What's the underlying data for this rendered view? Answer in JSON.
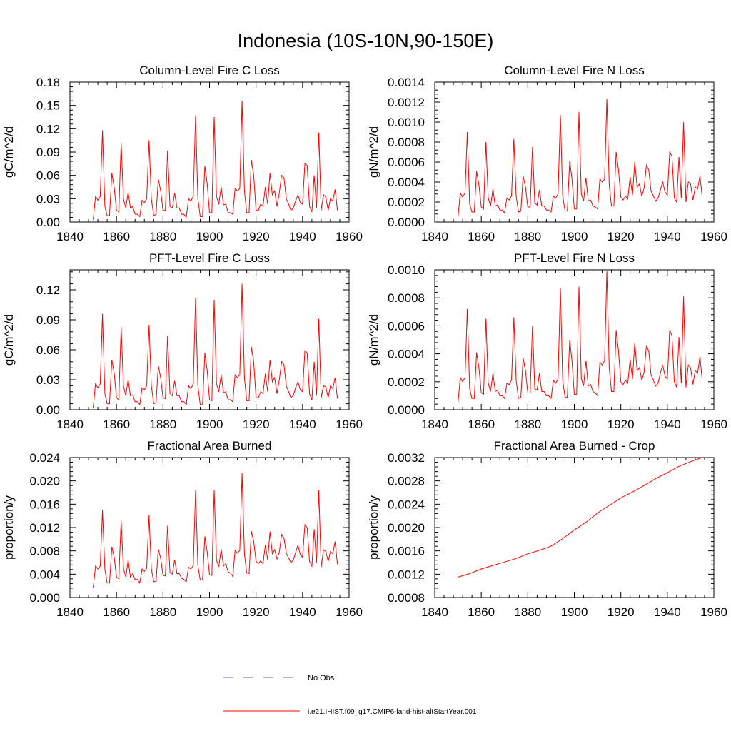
{
  "figure": {
    "title": "Indonesia (10S-10N,90-150E)",
    "colors": {
      "model": "#ff0000",
      "obs": "#6a6aa8",
      "axis": "#000000"
    }
  },
  "legend": [
    {
      "label": "No Obs",
      "style": "dashed",
      "color": "#6a6aa8"
    },
    {
      "label": "i.e21.IHIST.f09_g17.CMIP6-land-hist-altStartYear.001",
      "style": "solid",
      "color": "#ff0000"
    }
  ],
  "chart_data": [
    {
      "type": "line",
      "title": "Column-Level Fire C Loss",
      "ylabel": "gC/m^2/d",
      "xlim": [
        1840,
        1960
      ],
      "xticks": [
        1840,
        1860,
        1880,
        1900,
        1920,
        1940,
        1960
      ],
      "ylim": [
        0,
        0.18
      ],
      "yticks": [
        "0.00",
        "0.03",
        "0.06",
        "0.09",
        "0.12",
        "0.15",
        "0.18"
      ],
      "x_start": 1850,
      "x_step": 1,
      "series": [
        {
          "values": [
            0.003,
            0.033,
            0.028,
            0.033,
            0.118,
            0.02,
            0.008,
            0.008,
            0.063,
            0.045,
            0.015,
            0.013,
            0.102,
            0.03,
            0.018,
            0.038,
            0.018,
            0.02,
            0.01,
            0.01,
            0.007,
            0.028,
            0.025,
            0.03,
            0.105,
            0.03,
            0.008,
            0.01,
            0.055,
            0.04,
            0.015,
            0.015,
            0.092,
            0.02,
            0.018,
            0.037,
            0.018,
            0.018,
            0.01,
            0.01,
            0.006,
            0.03,
            0.027,
            0.033,
            0.137,
            0.03,
            0.007,
            0.007,
            0.072,
            0.05,
            0.012,
            0.012,
            0.135,
            0.033,
            0.023,
            0.045,
            0.022,
            0.023,
            0.012,
            0.012,
            0.01,
            0.043,
            0.04,
            0.043,
            0.156,
            0.04,
            0.012,
            0.012,
            0.08,
            0.06,
            0.015,
            0.015,
            0.023,
            0.02,
            0.045,
            0.023,
            0.063,
            0.035,
            0.04,
            0.02,
            0.038,
            0.06,
            0.057,
            0.03,
            0.023,
            0.015,
            0.018,
            0.027,
            0.035,
            0.025,
            0.023,
            0.075,
            0.073,
            0.02,
            0.013,
            0.06,
            0.018,
            0.115,
            0.015,
            0.035,
            0.032,
            0.015,
            0.03,
            0.027,
            0.042,
            0.015
          ]
        }
      ]
    },
    {
      "type": "line",
      "title": "Column-Level Fire N Loss",
      "ylabel": "gN/m^2/d",
      "xlim": [
        1840,
        1960
      ],
      "xticks": [
        1840,
        1860,
        1880,
        1900,
        1920,
        1940,
        1960
      ],
      "ylim": [
        0,
        0.0014
      ],
      "yticks": [
        "0.0000",
        "0.0002",
        "0.0004",
        "0.0006",
        "0.0008",
        "0.0010",
        "0.0012",
        "0.0014"
      ],
      "x_start": 1850,
      "x_step": 1,
      "series": [
        {
          "values": [
            5e-05,
            0.00029,
            0.00025,
            0.00029,
            0.0009,
            0.00018,
            0.0001,
            0.0001,
            0.00051,
            0.00037,
            0.00015,
            0.00013,
            0.0008,
            0.00024,
            0.00016,
            0.00033,
            0.00016,
            0.00017,
            0.00012,
            0.00012,
            9e-05,
            0.00024,
            0.00022,
            0.00026,
            0.00083,
            0.00026,
            0.0001,
            0.00011,
            0.00046,
            0.00035,
            0.00015,
            0.00015,
            0.00075,
            0.00019,
            0.00017,
            0.00032,
            0.00016,
            0.00016,
            0.00012,
            0.00012,
            0.0001,
            0.00026,
            0.00024,
            0.00028,
            0.00107,
            0.00026,
            0.00011,
            0.00011,
            0.00061,
            0.00043,
            0.00013,
            0.00013,
            0.0011,
            0.00028,
            0.00021,
            0.00044,
            0.00021,
            0.00022,
            0.00016,
            0.00015,
            0.00013,
            0.00043,
            0.0004,
            0.00043,
            0.00123,
            0.00037,
            0.00016,
            0.00016,
            0.0007,
            0.00052,
            0.00025,
            0.00022,
            0.00026,
            0.00023,
            0.00045,
            0.00027,
            0.0006,
            0.00035,
            0.00038,
            0.00026,
            0.00034,
            0.00057,
            0.00052,
            0.00031,
            0.00026,
            0.00021,
            0.00024,
            0.00032,
            0.0004,
            0.0003,
            0.00027,
            0.0007,
            0.00066,
            0.00024,
            0.0002,
            0.00065,
            0.00024,
            0.001,
            0.0002,
            0.0004,
            0.00038,
            0.00022,
            0.00035,
            0.00033,
            0.00046,
            0.00025
          ]
        }
      ]
    },
    {
      "type": "line",
      "title": "PFT-Level Fire C Loss",
      "ylabel": "gC/m^2/d",
      "xlim": [
        1840,
        1960
      ],
      "xticks": [
        1840,
        1860,
        1880,
        1900,
        1920,
        1940,
        1960
      ],
      "ylim": [
        0,
        0.14
      ],
      "yticks": [
        "0.00",
        "0.03",
        "0.06",
        "0.09",
        "0.12"
      ],
      "x_start": 1850,
      "x_step": 1,
      "series": [
        {
          "values": [
            0.002,
            0.026,
            0.022,
            0.026,
            0.096,
            0.016,
            0.006,
            0.006,
            0.05,
            0.037,
            0.012,
            0.01,
            0.083,
            0.024,
            0.014,
            0.03,
            0.014,
            0.015,
            0.008,
            0.008,
            0.005,
            0.022,
            0.02,
            0.024,
            0.085,
            0.024,
            0.006,
            0.007,
            0.044,
            0.032,
            0.012,
            0.011,
            0.074,
            0.016,
            0.014,
            0.029,
            0.014,
            0.014,
            0.008,
            0.008,
            0.005,
            0.024,
            0.021,
            0.026,
            0.112,
            0.024,
            0.005,
            0.005,
            0.057,
            0.04,
            0.01,
            0.009,
            0.11,
            0.026,
            0.018,
            0.035,
            0.017,
            0.018,
            0.01,
            0.01,
            0.008,
            0.035,
            0.032,
            0.035,
            0.126,
            0.032,
            0.009,
            0.009,
            0.063,
            0.048,
            0.012,
            0.012,
            0.018,
            0.016,
            0.036,
            0.018,
            0.05,
            0.028,
            0.032,
            0.016,
            0.03,
            0.048,
            0.045,
            0.024,
            0.018,
            0.012,
            0.014,
            0.022,
            0.028,
            0.02,
            0.018,
            0.059,
            0.057,
            0.016,
            0.01,
            0.048,
            0.014,
            0.091,
            0.012,
            0.024,
            0.023,
            0.012,
            0.024,
            0.021,
            0.032,
            0.011
          ]
        }
      ]
    },
    {
      "type": "line",
      "title": "PFT-Level Fire N Loss",
      "ylabel": "gN/m^2/d",
      "xlim": [
        1840,
        1960
      ],
      "xticks": [
        1840,
        1860,
        1880,
        1900,
        1920,
        1940,
        1960
      ],
      "ylim": [
        0,
        0.001
      ],
      "yticks": [
        "0.0000",
        "0.0002",
        "0.0004",
        "0.0006",
        "0.0008",
        "0.0010"
      ],
      "x_start": 1850,
      "x_step": 1,
      "series": [
        {
          "values": [
            5e-05,
            0.00023,
            0.0002,
            0.00023,
            0.00072,
            0.00015,
            8e-05,
            8e-05,
            0.00041,
            0.0003,
            0.00012,
            0.00011,
            0.00065,
            0.00019,
            0.00013,
            0.00026,
            0.00013,
            0.00014,
            0.0001,
            0.0001,
            8e-05,
            0.00019,
            0.00018,
            0.00021,
            0.00066,
            0.00021,
            8e-05,
            9e-05,
            0.00037,
            0.00028,
            0.00012,
            0.00012,
            0.0006,
            0.00015,
            0.00014,
            0.00026,
            0.00013,
            0.00013,
            0.0001,
            0.0001,
            8e-05,
            0.00021,
            0.00019,
            0.00022,
            0.00087,
            0.00021,
            9e-05,
            9e-05,
            0.0005,
            0.00035,
            0.00011,
            0.00011,
            0.00088,
            0.00022,
            0.00017,
            0.00035,
            0.00017,
            0.00018,
            0.00013,
            0.00012,
            0.0001,
            0.00034,
            0.00032,
            0.00035,
            0.00099,
            0.0003,
            0.00013,
            0.00013,
            0.00057,
            0.00042,
            0.0002,
            0.00018,
            0.00021,
            0.00019,
            0.00036,
            0.00022,
            0.00048,
            0.00028,
            0.0003,
            0.00021,
            0.00027,
            0.00046,
            0.00042,
            0.00025,
            0.00021,
            0.00017,
            0.00019,
            0.00026,
            0.00032,
            0.00024,
            0.00022,
            0.00057,
            0.00053,
            0.0002,
            0.00016,
            0.00052,
            0.00019,
            0.00081,
            0.00016,
            0.00032,
            0.0003,
            0.00018,
            0.00028,
            0.00026,
            0.00038,
            0.00021
          ]
        }
      ]
    },
    {
      "type": "line",
      "title": "Fractional Area Burned",
      "ylabel": "proportion/y",
      "xlim": [
        1840,
        1960
      ],
      "xticks": [
        1840,
        1860,
        1880,
        1900,
        1920,
        1940,
        1960
      ],
      "ylim": [
        0,
        0.024
      ],
      "yticks": [
        "0.000",
        "0.004",
        "0.008",
        "0.012",
        "0.016",
        "0.020",
        "0.024"
      ],
      "x_start": 1850,
      "x_step": 1,
      "series": [
        {
          "values": [
            0.0017,
            0.0054,
            0.0049,
            0.0054,
            0.015,
            0.0048,
            0.0025,
            0.0025,
            0.0087,
            0.007,
            0.0035,
            0.0032,
            0.0132,
            0.005,
            0.0035,
            0.0064,
            0.0035,
            0.0041,
            0.0031,
            0.0031,
            0.0025,
            0.0049,
            0.0045,
            0.005,
            0.0141,
            0.0049,
            0.0027,
            0.0028,
            0.0083,
            0.0067,
            0.0038,
            0.0037,
            0.0123,
            0.0043,
            0.004,
            0.0065,
            0.0041,
            0.0041,
            0.0033,
            0.0031,
            0.0027,
            0.0052,
            0.0049,
            0.0055,
            0.0184,
            0.0055,
            0.003,
            0.003,
            0.0105,
            0.0079,
            0.0039,
            0.0038,
            0.0184,
            0.0064,
            0.0053,
            0.0083,
            0.0054,
            0.0058,
            0.0044,
            0.0042,
            0.0036,
            0.0081,
            0.0076,
            0.0081,
            0.0213,
            0.0075,
            0.0042,
            0.0041,
            0.0114,
            0.0096,
            0.0062,
            0.0058,
            0.0063,
            0.0058,
            0.009,
            0.0065,
            0.0113,
            0.0075,
            0.0082,
            0.0066,
            0.0078,
            0.0108,
            0.0102,
            0.0076,
            0.0068,
            0.006,
            0.0064,
            0.0077,
            0.009,
            0.0074,
            0.0069,
            0.0125,
            0.012,
            0.0062,
            0.0054,
            0.0117,
            0.006,
            0.0184,
            0.0052,
            0.0082,
            0.0079,
            0.0062,
            0.0079,
            0.0075,
            0.0096,
            0.0057
          ]
        }
      ]
    },
    {
      "type": "line",
      "title": "Fractional Area Burned - Crop",
      "ylabel": "proportion/y",
      "xlim": [
        1840,
        1960
      ],
      "xticks": [
        1840,
        1860,
        1880,
        1900,
        1920,
        1940,
        1960
      ],
      "ylim": [
        0.0008,
        0.0032
      ],
      "yticks": [
        "0.0008",
        "0.0012",
        "0.0016",
        "0.0020",
        "0.0024",
        "0.0028",
        "0.0032"
      ],
      "series": [
        {
          "points": [
            [
              1850,
              0.00115
            ],
            [
              1855,
              0.00121
            ],
            [
              1860,
              0.00129
            ],
            [
              1865,
              0.00135
            ],
            [
              1870,
              0.00141
            ],
            [
              1875,
              0.00147
            ],
            [
              1880,
              0.00155
            ],
            [
              1885,
              0.00161
            ],
            [
              1890,
              0.00168
            ],
            [
              1895,
              0.00181
            ],
            [
              1900,
              0.00196
            ],
            [
              1905,
              0.00209
            ],
            [
              1910,
              0.00225
            ],
            [
              1915,
              0.00238
            ],
            [
              1920,
              0.00251
            ],
            [
              1925,
              0.00261
            ],
            [
              1930,
              0.00272
            ],
            [
              1935,
              0.00284
            ],
            [
              1940,
              0.00294
            ],
            [
              1945,
              0.00305
            ],
            [
              1950,
              0.00313
            ],
            [
              1955,
              0.0032
            ]
          ]
        }
      ]
    }
  ]
}
